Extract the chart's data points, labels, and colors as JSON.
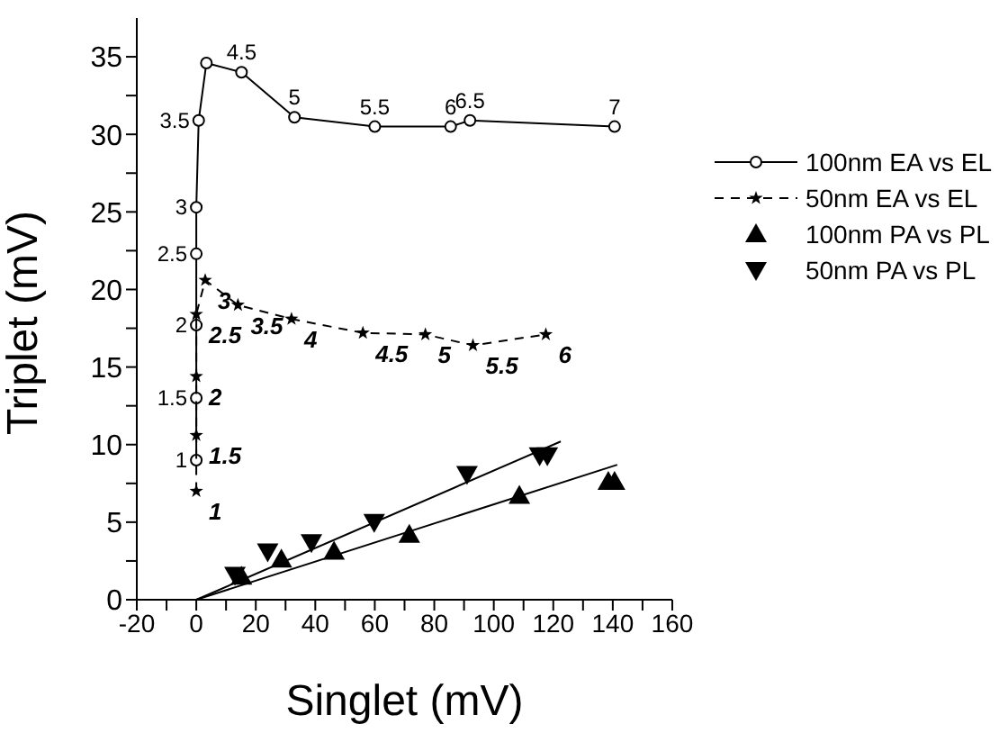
{
  "chart_data": {
    "type": "line",
    "xlabel": "Singlet  (mV)",
    "ylabel": "Triplet  (mV)",
    "xlim": [
      -20,
      160
    ],
    "xticks": [
      -20,
      {
        "value": -10,
        "label": null
      },
      0,
      {
        "value": 10,
        "label": null
      },
      20,
      {
        "value": 30,
        "label": null
      },
      40,
      {
        "value": 50,
        "label": null
      },
      60,
      {
        "value": 70,
        "label": null
      },
      80,
      {
        "value": 90,
        "label": null
      },
      100,
      {
        "value": 110,
        "label": null
      },
      120,
      {
        "value": 130,
        "label": null
      },
      140,
      {
        "value": 150,
        "label": null
      },
      160
    ],
    "ylim": [
      0,
      37.5
    ],
    "yticks": [
      0,
      {
        "value": 2.5,
        "label": null
      },
      5,
      {
        "value": 7.5,
        "label": null
      },
      10,
      {
        "value": 12.5,
        "label": null
      },
      15,
      {
        "value": 17.5,
        "label": null
      },
      20,
      {
        "value": 22.5,
        "label": null
      },
      25,
      {
        "value": 27.5,
        "label": null
      },
      30,
      {
        "value": 32.5,
        "label": null
      },
      35
    ],
    "grid": false,
    "legend": "top right",
    "annotations": [
      {
        "text": "1",
        "x": 0,
        "y": 9
      },
      {
        "text": "1.5",
        "x": 0,
        "y": 13
      },
      {
        "text": "2",
        "x": 0,
        "y": 17.7
      },
      {
        "text": "2.5",
        "x": 0,
        "y": 22.3
      },
      {
        "text": "3",
        "x": 0,
        "y": 25.3
      },
      {
        "text": "3.5",
        "x": 0.8,
        "y": 30.9
      },
      {
        "text": "4.5",
        "x": 15.2,
        "y": 34
      },
      {
        "text": "5",
        "x": 33,
        "y": 31.1
      },
      {
        "text": "5.5",
        "x": 60,
        "y": 30.5
      },
      {
        "text": "6",
        "x": 85.5,
        "y": 30.5
      },
      {
        "text": "6.5",
        "x": 92,
        "y": 30.9
      },
      {
        "text": "7",
        "x": 140.6,
        "y": 30.5
      },
      {
        "text": "1",
        "x": 0,
        "y": 7
      },
      {
        "text": "1.5",
        "x": 0,
        "y": 10.6
      },
      {
        "text": "2",
        "x": 0,
        "y": 14.4
      },
      {
        "text": "2.5",
        "x": 0,
        "y": 18.4
      },
      {
        "text": "3",
        "x": 3,
        "y": 20.6
      },
      {
        "text": "3.5",
        "x": 14,
        "y": 19
      },
      {
        "text": "4",
        "x": 32,
        "y": 18.1
      },
      {
        "text": "4.5",
        "x": 56,
        "y": 17.2
      },
      {
        "text": "5",
        "x": 77,
        "y": 17.1
      },
      {
        "text": "5.5",
        "x": 93,
        "y": 16.4
      },
      {
        "text": "6",
        "x": 117.5,
        "y": 17.1
      }
    ],
    "series": [
      {
        "name": "100nm EA vs EL",
        "type": "line",
        "marker": "circle",
        "line_style": "solid",
        "color": "#000000",
        "x": [
          0,
          0,
          0,
          0,
          0,
          0.8,
          3.4,
          15.2,
          33,
          60,
          85.5,
          92,
          140.6
        ],
        "values": [
          9,
          13,
          17.7,
          22.3,
          25.3,
          30.9,
          34.6,
          34,
          31.1,
          30.5,
          30.5,
          30.9,
          30.5
        ]
      },
      {
        "name": "50nm EA vs EL",
        "type": "line",
        "marker": "star",
        "line_style": "dashed",
        "color": "#000000",
        "x": [
          0,
          0,
          0,
          0,
          3,
          14,
          32,
          56,
          77,
          93,
          117.5
        ],
        "values": [
          7,
          10.6,
          14.4,
          18.4,
          20.6,
          19,
          18.1,
          17.2,
          17.1,
          16.4,
          17.1
        ]
      },
      {
        "name": "100nm PA vs PL",
        "type": "scatter",
        "marker": "triangle",
        "color": "#000000",
        "x": [
          15.2,
          28.6,
          46.3,
          71.6,
          108.6,
          138.5,
          140.6
        ],
        "values": [
          1.5,
          2.6,
          3.1,
          4.2,
          6.7,
          7.6,
          7.6
        ]
      },
      {
        "name": "50nm PA vs PL",
        "type": "scatter",
        "marker": "triangle-down",
        "color": "#000000",
        "x": [
          13,
          24,
          38.7,
          59.8,
          91,
          115.4,
          118
        ],
        "values": [
          1.6,
          3.1,
          3.7,
          5,
          8.1,
          9.3,
          9.3
        ]
      },
      {
        "type": "line",
        "marker": "none",
        "line_style": "solid",
        "color": "#000000",
        "x": [
          0,
          141.5
        ],
        "values": [
          0,
          8.7
        ]
      },
      {
        "type": "line",
        "marker": "none",
        "line_style": "solid",
        "color": "#000000",
        "x": [
          0,
          122.5
        ],
        "values": [
          0,
          10.2
        ]
      }
    ]
  }
}
